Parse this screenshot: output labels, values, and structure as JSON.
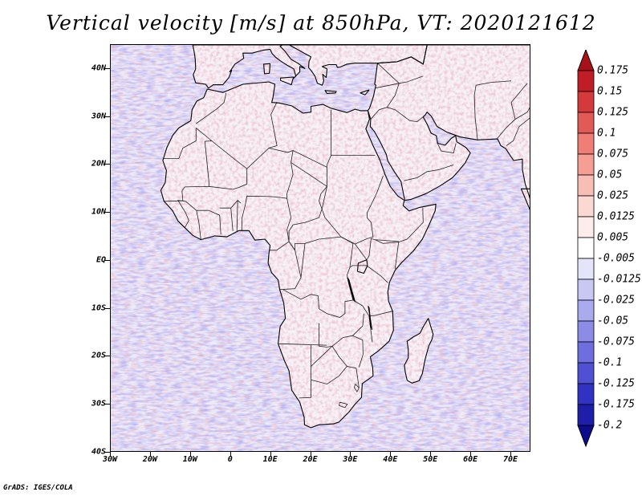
{
  "title": "Vertical velocity [m/s] at 850hPa, VT: 2020121612",
  "credit": "GrADS: IGES/COLA",
  "map": {
    "lon_range": [
      -30,
      75
    ],
    "lat_range": [
      -40,
      45
    ],
    "y_ticks": [
      {
        "lat": 40,
        "label": "40N"
      },
      {
        "lat": 30,
        "label": "30N"
      },
      {
        "lat": 20,
        "label": "20N"
      },
      {
        "lat": 10,
        "label": "10N"
      },
      {
        "lat": 0,
        "label": "EQ"
      },
      {
        "lat": -10,
        "label": "10S"
      },
      {
        "lat": -20,
        "label": "20S"
      },
      {
        "lat": -30,
        "label": "30S"
      },
      {
        "lat": -40,
        "label": "40S"
      }
    ],
    "x_ticks": [
      {
        "lon": -30,
        "label": "30W"
      },
      {
        "lon": -20,
        "label": "20W"
      },
      {
        "lon": -10,
        "label": "10W"
      },
      {
        "lon": 0,
        "label": "0"
      },
      {
        "lon": 10,
        "label": "10E"
      },
      {
        "lon": 20,
        "label": "20E"
      },
      {
        "lon": 30,
        "label": "30E"
      },
      {
        "lon": 40,
        "label": "40E"
      },
      {
        "lon": 50,
        "label": "50E"
      },
      {
        "lon": 60,
        "label": "60E"
      },
      {
        "lon": 70,
        "label": "70E"
      }
    ],
    "colors": {
      "ocean_base": "#ecebfa",
      "land_base": "#f6f1f6",
      "coast": "#000000",
      "border": "#222222"
    }
  },
  "colorbar": {
    "levels": [
      "0.175",
      "0.15",
      "0.125",
      "0.1",
      "0.075",
      "0.05",
      "0.025",
      "0.0125",
      "0.005",
      "-0.005",
      "-0.0125",
      "-0.025",
      "-0.05",
      "-0.075",
      "-0.1",
      "-0.125",
      "-0.175",
      "-0.2"
    ],
    "colors": [
      "#a8101a",
      "#c01e26",
      "#d43a3c",
      "#e25a56",
      "#ee7e76",
      "#f59e94",
      "#f8bdb4",
      "#fbd8d2",
      "#fdecea",
      "#ffffff",
      "#e4e4fa",
      "#c8c8f4",
      "#aaaaee",
      "#8c8ce6",
      "#6e6ede",
      "#5050d2",
      "#3232c2",
      "#1e1ea8",
      "#0c0c8c"
    ]
  }
}
